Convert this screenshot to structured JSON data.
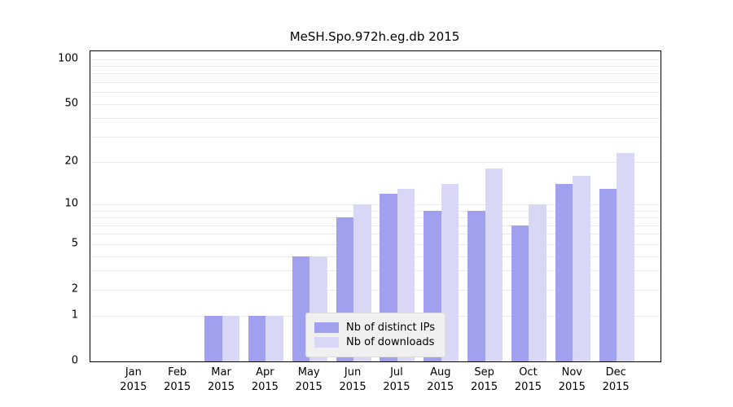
{
  "title": "MeSH.Spo.972h.eg.db 2015",
  "chart_data": {
    "type": "bar",
    "title": "MeSH.Spo.972h.eg.db 2015",
    "categories": [
      "Jan",
      "Feb",
      "Mar",
      "Apr",
      "May",
      "Jun",
      "Jul",
      "Aug",
      "Sep",
      "Oct",
      "Nov",
      "Dec"
    ],
    "year_label": "2015",
    "series": [
      {
        "name": "Nb of distinct IPs",
        "color": "#a0a0ee",
        "values": [
          0,
          0,
          1,
          1,
          4,
          8,
          12,
          9,
          9,
          7,
          14,
          13
        ]
      },
      {
        "name": "Nb of downloads",
        "color": "#d8d8f6",
        "values": [
          0,
          0,
          1,
          1,
          4,
          10,
          13,
          14,
          18,
          10,
          16,
          23
        ]
      }
    ],
    "y_ticks": [
      0,
      1,
      2,
      5,
      10,
      20,
      50,
      100
    ],
    "y_gridlines": [
      1,
      2,
      3,
      4,
      5,
      6,
      7,
      8,
      9,
      10,
      20,
      30,
      40,
      50,
      60,
      70,
      80,
      90,
      100
    ],
    "y_scale": "log1p",
    "ylim": [
      0,
      113
    ],
    "xlabel": "",
    "ylabel": "",
    "grid": true,
    "legend_position": "lower center"
  },
  "colors": {
    "grid": "#e9e9e9",
    "axis": "#000000",
    "bar_dark": "#a0a0ee",
    "bar_light": "#d8d8f6",
    "legend_bg": "#f0f0f0"
  }
}
